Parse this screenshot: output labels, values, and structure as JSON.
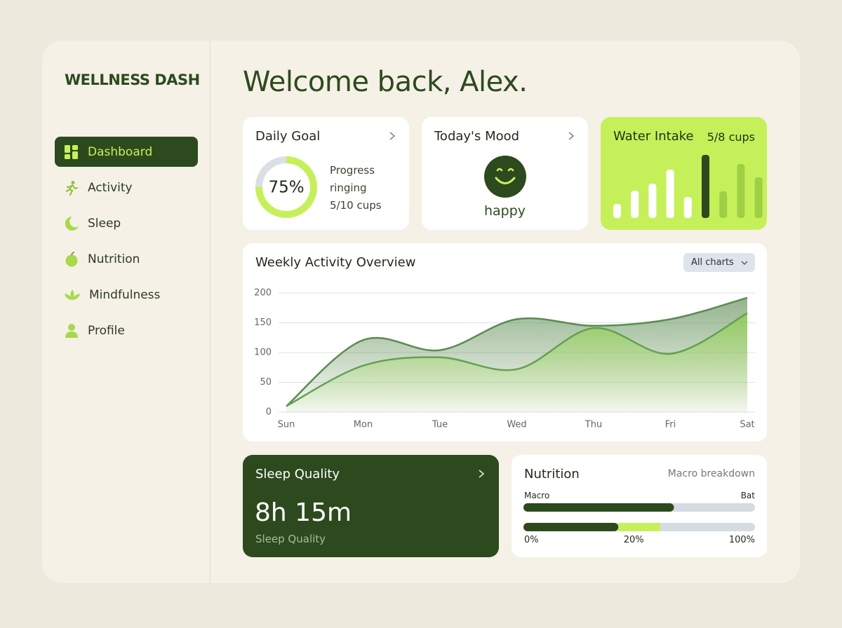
{
  "brand": "WELLNESS DASH",
  "nav": [
    {
      "label": "Dashboard",
      "active": true
    },
    {
      "label": "Activity",
      "active": false
    },
    {
      "label": "Sleep",
      "active": false
    },
    {
      "label": "Nutrition",
      "active": false
    },
    {
      "label": "Mindfulness",
      "active": false
    },
    {
      "label": "Profile",
      "active": false
    }
  ],
  "header": {
    "title": "Welcome back, Alex."
  },
  "daily_goal": {
    "title": "Daily Goal",
    "progress": {
      "value": 75,
      "label": "75%"
    },
    "lines": [
      "Progress",
      "ringing",
      "5/10 cups"
    ]
  },
  "mood": {
    "title": "Today's Mood",
    "label": "happy"
  },
  "water": {
    "title": "Water Intake",
    "summary": "5/8 cups",
    "bars": [
      {
        "value": 20,
        "color": "#ffffff"
      },
      {
        "value": 39,
        "color": "#ffffff"
      },
      {
        "value": 49,
        "color": "#ffffff"
      },
      {
        "value": 69,
        "color": "#ffffff"
      },
      {
        "value": 30,
        "color": "#ffffff"
      },
      {
        "value": 90,
        "color": "#2d4a1e"
      },
      {
        "value": 38,
        "color": "#9fcf45"
      },
      {
        "value": 77,
        "color": "#9fcf45"
      },
      {
        "value": 58,
        "color": "#9fcf45"
      }
    ]
  },
  "chart_data": {
    "type": "area",
    "title": "Weekly Activity Overview",
    "dropdown": "All charts",
    "categories": [
      "Sun",
      "Mon",
      "Tue",
      "Wed",
      "Thu",
      "Fri",
      "Sat"
    ],
    "series": [
      {
        "color": "#5b8b50",
        "values": [
          10,
          121,
          104,
          156,
          145,
          156,
          192
        ]
      },
      {
        "color": "#64a052",
        "values": [
          10,
          78,
          92,
          72,
          141,
          98,
          166
        ]
      }
    ],
    "ylim": [
      0,
      200
    ],
    "yticks": [
      0,
      50,
      100,
      150,
      200
    ],
    "grid": true
  },
  "sleep": {
    "title": "Sleep Quality",
    "value": "8h 15m",
    "caption": "Sleep Quality"
  },
  "nutrition": {
    "title": "Nutrition",
    "subtitle": "Macro breakdown",
    "bar_left": "Macro",
    "bar_right": "Bat",
    "xlim": [
      0,
      100
    ],
    "bar1": {
      "value": 65,
      "color": "#2d4a1e"
    },
    "bar2": [
      {
        "value": 41,
        "color": "#2d4a1e"
      },
      {
        "value": 18,
        "color": "#c6f05a"
      }
    ],
    "scale_labels": [
      "0%",
      "20%",
      "100%"
    ]
  }
}
